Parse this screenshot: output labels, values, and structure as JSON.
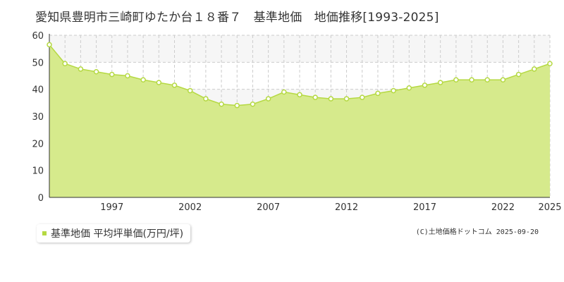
{
  "title": "愛知県豊明市三崎町ゆたか台１８番７　基準地価　地価推移[1993-2025]",
  "legend": {
    "label": "基準地価 平均坪単価(万円/坪)"
  },
  "copyright": "(C)土地価格ドットコム 2025-09-20",
  "colors": {
    "fill": "#d6ea8c",
    "line": "#b5d942",
    "marker_fill": "#ffffff",
    "marker_stroke": "#b5d942",
    "grid": "#cccccc",
    "band": "#f6f6f6"
  },
  "chart_data": {
    "type": "area",
    "x": [
      1993,
      1994,
      1995,
      1996,
      1997,
      1998,
      1999,
      2000,
      2001,
      2002,
      2003,
      2004,
      2005,
      2006,
      2007,
      2008,
      2009,
      2010,
      2011,
      2012,
      2013,
      2014,
      2015,
      2016,
      2017,
      2018,
      2019,
      2020,
      2021,
      2022,
      2023,
      2024,
      2025
    ],
    "series": [
      {
        "name": "基準地価 平均坪単価(万円/坪)",
        "values": [
          56.5,
          49.5,
          47.5,
          46.5,
          45.5,
          45,
          43.5,
          42.5,
          41.5,
          39.5,
          36.5,
          34.5,
          34,
          34.5,
          36.5,
          39,
          38,
          37,
          36.5,
          36.5,
          37,
          38.5,
          39.5,
          40.5,
          41.5,
          42.5,
          43.5,
          43.5,
          43.5,
          43.5,
          45.5,
          47.5,
          49.5
        ]
      }
    ],
    "x_tick_labels": [
      "1997",
      "2002",
      "2007",
      "2012",
      "2017",
      "2022",
      "2025"
    ],
    "y_ticks": [
      0,
      10,
      20,
      30,
      40,
      50,
      60
    ],
    "ylim": [
      0,
      60
    ],
    "xlim": [
      1993,
      2025
    ],
    "grid": true,
    "legend_position": "bottom-left"
  }
}
